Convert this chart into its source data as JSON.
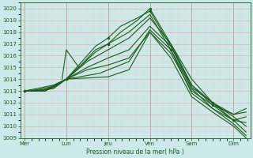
{
  "xlabel": "Pression niveau de la mer( hPa )",
  "ylim": [
    1009,
    1020.5
  ],
  "yticks": [
    1009,
    1010,
    1011,
    1012,
    1013,
    1014,
    1015,
    1016,
    1017,
    1018,
    1019,
    1020
  ],
  "xtick_labels": [
    "Mer",
    "Lun",
    "Jeu",
    "Ven",
    "Sam",
    "Dim"
  ],
  "bg_color": "#cce8e8",
  "grid_major_color": "#e8a0a0",
  "grid_minor_color": "#f0c8c8",
  "line_color": "#1a5c1a",
  "series": [
    {
      "x": [
        0.0,
        0.3,
        0.7,
        1.0,
        1.3,
        1.7,
        2.0,
        2.3,
        2.7,
        3.0,
        3.5,
        4.0,
        4.5,
        5.0,
        5.3
      ],
      "y": [
        1013.0,
        1013.2,
        1013.5,
        1014.0,
        1015.0,
        1016.5,
        1017.0,
        1018.0,
        1019.0,
        1020.0,
        1017.0,
        1014.0,
        1012.0,
        1011.0,
        1011.5
      ]
    },
    {
      "x": [
        0.0,
        0.3,
        0.7,
        1.0,
        1.3,
        1.7,
        2.0,
        2.3,
        2.7,
        3.0,
        3.5,
        4.0,
        4.5,
        5.0,
        5.3
      ],
      "y": [
        1013.0,
        1013.1,
        1013.4,
        1014.0,
        1015.2,
        1016.8,
        1017.5,
        1018.5,
        1019.2,
        1019.8,
        1016.8,
        1013.5,
        1011.8,
        1011.0,
        1011.2
      ]
    },
    {
      "x": [
        0.0,
        0.3,
        0.7,
        1.0,
        1.3,
        1.7,
        2.0,
        2.5,
        3.0,
        3.5,
        4.0,
        4.5,
        5.0,
        5.3
      ],
      "y": [
        1013.0,
        1013.0,
        1013.3,
        1014.0,
        1015.0,
        1016.3,
        1017.0,
        1018.0,
        1019.5,
        1016.5,
        1013.2,
        1011.5,
        1010.5,
        1010.8
      ]
    },
    {
      "x": [
        0.0,
        0.3,
        0.7,
        1.0,
        1.5,
        2.0,
        2.5,
        3.0,
        3.5,
        4.0,
        4.5,
        5.0,
        5.3
      ],
      "y": [
        1013.0,
        1013.0,
        1013.2,
        1014.0,
        1015.5,
        1016.5,
        1017.5,
        1019.2,
        1017.0,
        1013.5,
        1012.0,
        1010.5,
        1010.3
      ]
    },
    {
      "x": [
        0.0,
        0.5,
        1.0,
        1.5,
        2.0,
        2.5,
        3.0,
        3.5,
        4.0,
        4.5,
        5.0,
        5.3
      ],
      "y": [
        1013.0,
        1013.1,
        1014.0,
        1015.0,
        1015.8,
        1016.5,
        1018.5,
        1016.8,
        1013.3,
        1012.0,
        1010.8,
        1010.0
      ]
    },
    {
      "x": [
        0.0,
        0.5,
        1.0,
        1.5,
        2.0,
        2.5,
        3.0,
        3.5,
        4.0,
        4.5,
        5.0,
        5.3
      ],
      "y": [
        1013.0,
        1013.0,
        1014.0,
        1014.8,
        1015.2,
        1015.8,
        1018.0,
        1016.2,
        1013.0,
        1011.8,
        1010.5,
        1009.5
      ]
    },
    {
      "x": [
        0.0,
        0.5,
        1.0,
        1.8,
        2.5,
        3.0,
        3.5,
        4.0,
        4.5,
        5.0,
        5.3
      ],
      "y": [
        1013.0,
        1013.0,
        1014.0,
        1014.5,
        1015.5,
        1018.2,
        1016.5,
        1012.8,
        1011.5,
        1010.2,
        1009.2
      ]
    },
    {
      "x": [
        0.0,
        0.5,
        1.0,
        2.0,
        2.5,
        3.0,
        3.5,
        4.0,
        4.5,
        5.0,
        5.3
      ],
      "y": [
        1013.0,
        1013.0,
        1014.0,
        1014.2,
        1014.8,
        1018.0,
        1015.8,
        1012.5,
        1011.2,
        1010.0,
        1009.0
      ]
    }
  ],
  "lun_bump": {
    "x": [
      0.9,
      1.0,
      1.1,
      1.2,
      1.3
    ],
    "y": [
      1014.0,
      1016.5,
      1016.0,
      1015.5,
      1015.0
    ]
  }
}
